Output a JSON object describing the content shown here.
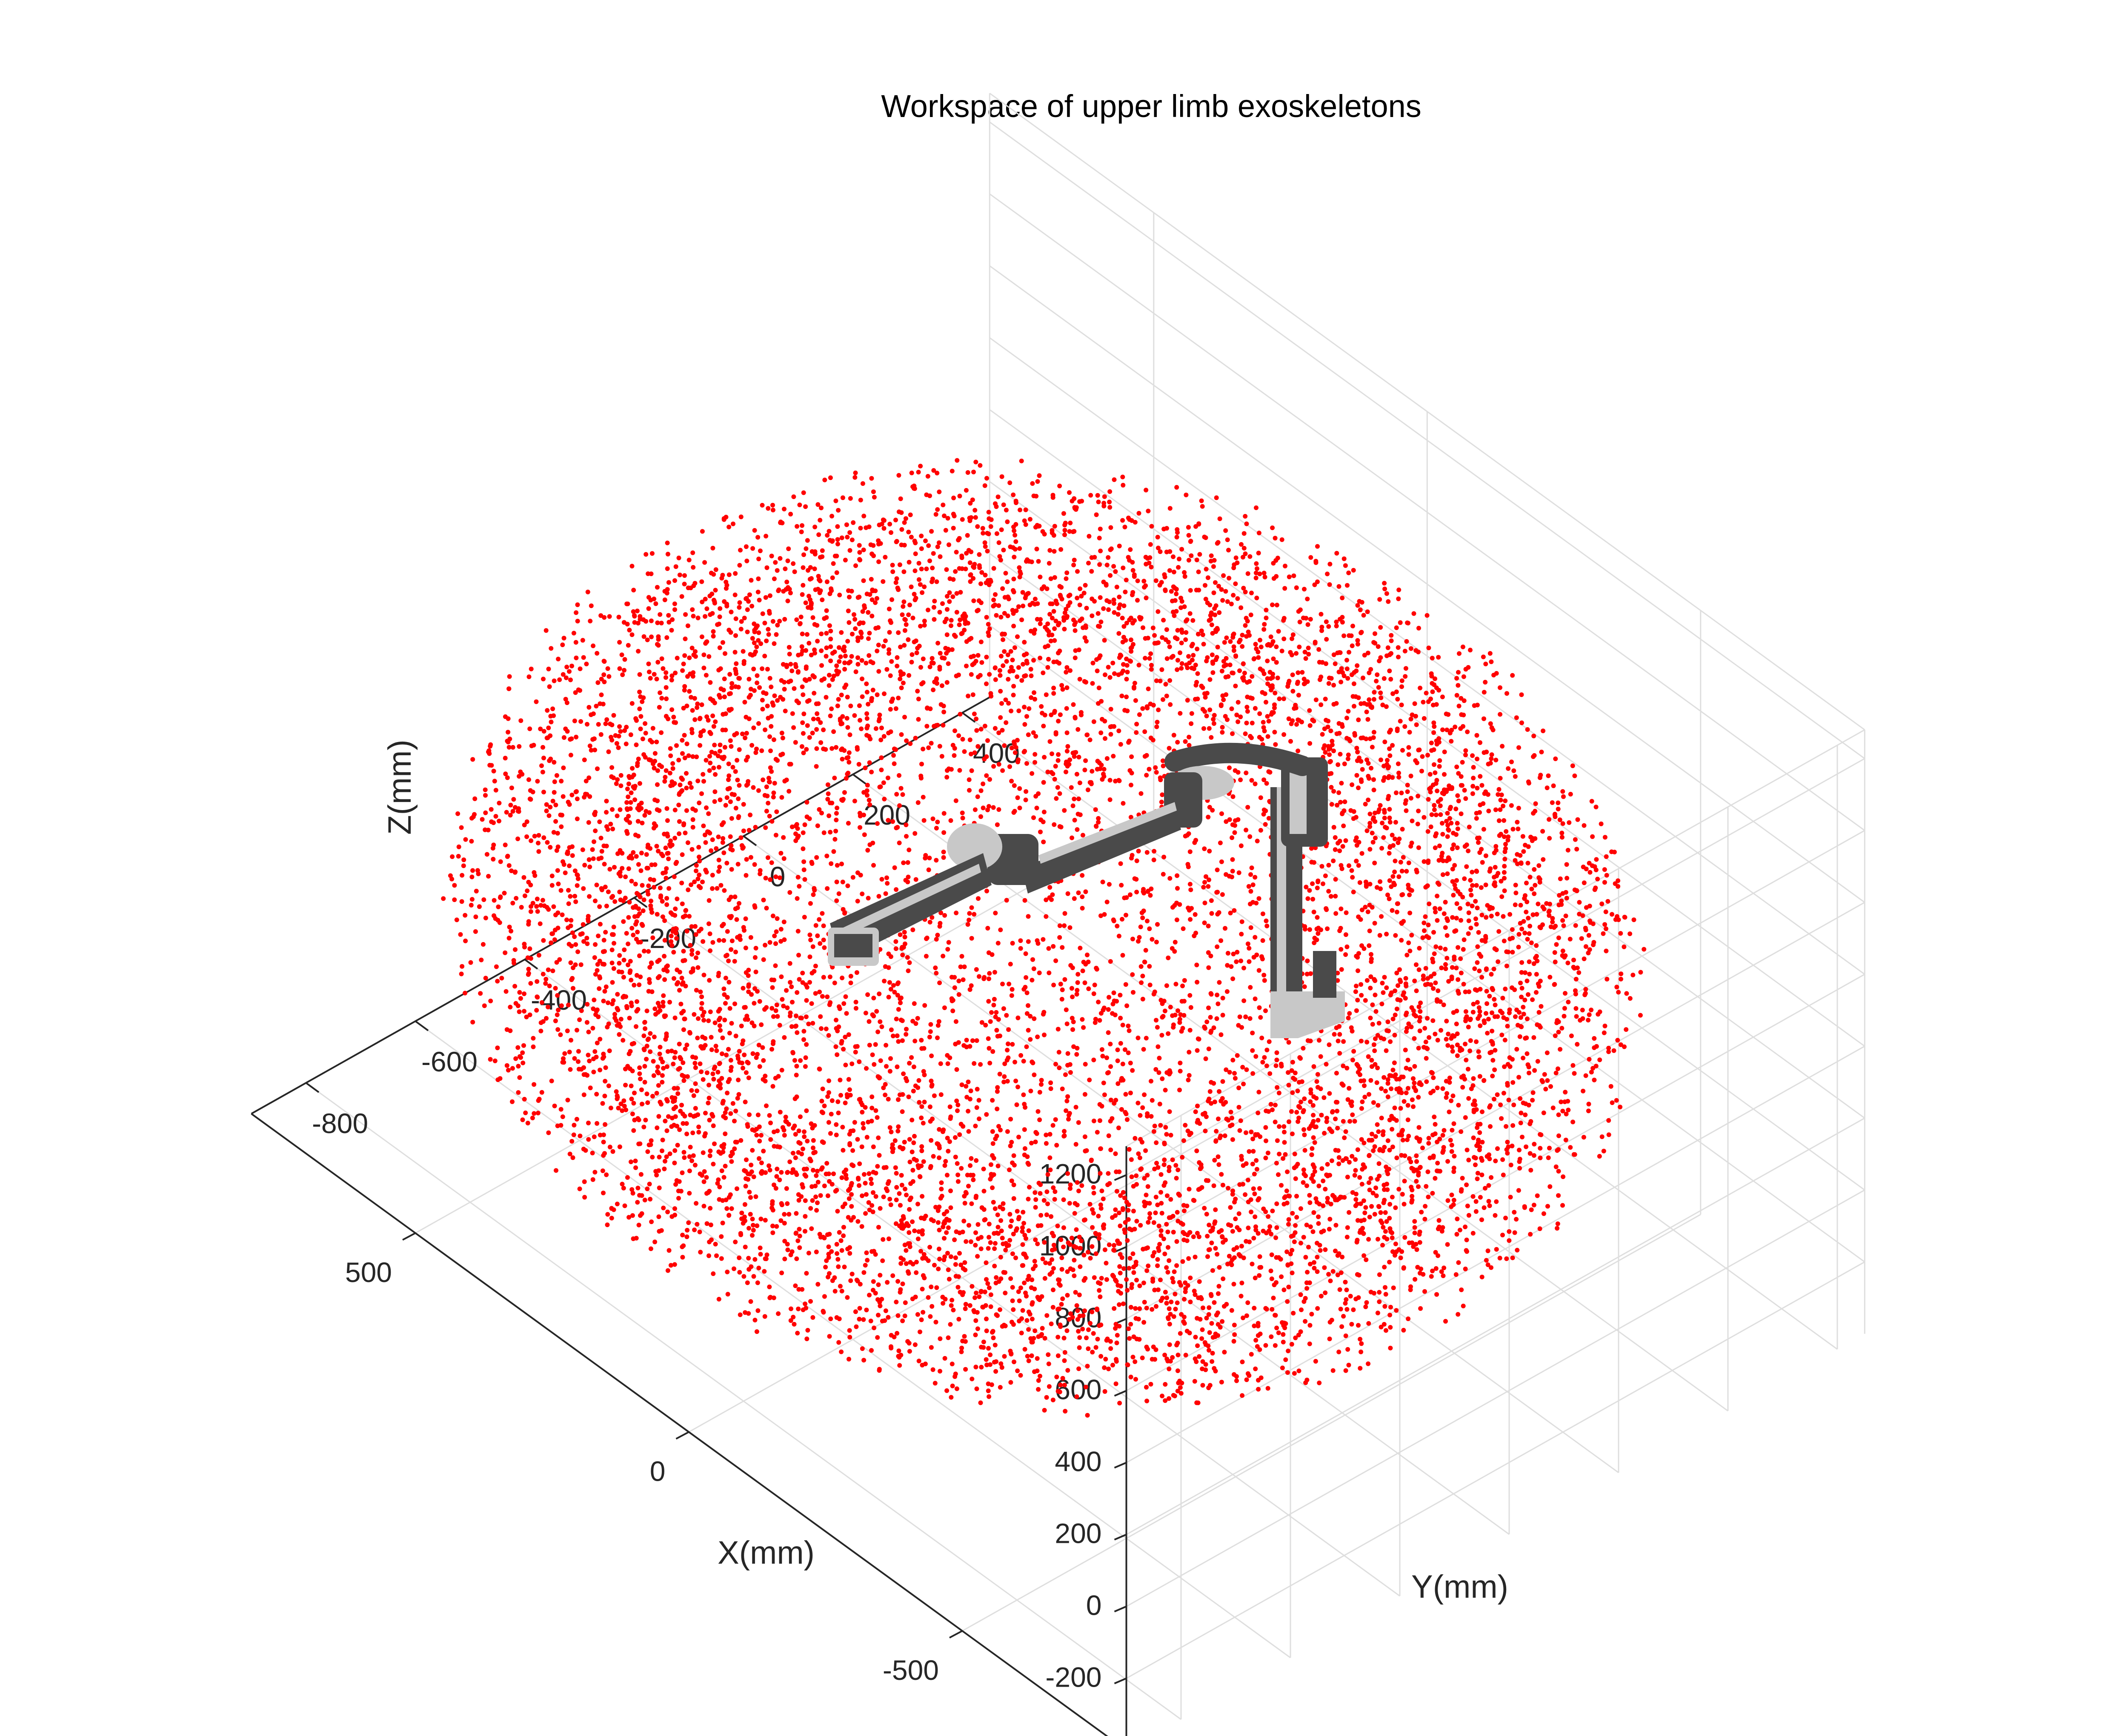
{
  "chart_data": {
    "type": "scatter",
    "projection": "3d",
    "title": "Workspace of upper limb exoskeletons",
    "xlabel": "X(mm)",
    "ylabel": "Y(mm)",
    "zlabel": "Z(mm)",
    "xlim": [
      -800,
      800
    ],
    "ylim": [
      -900,
      450
    ],
    "zlim": [
      -400,
      1280
    ],
    "xticks": [
      -500,
      0,
      500
    ],
    "yticks": [
      -800,
      -600,
      -400,
      -200,
      0,
      200,
      400
    ],
    "zticks": [
      -200,
      0,
      200,
      400,
      600,
      800,
      1000,
      1200
    ],
    "grid": true,
    "series": [
      {
        "marker_color": "#ff0000",
        "marker": "point",
        "distribution": "sphere_volume",
        "center": [
          0,
          -250,
          420
        ],
        "radius": 780,
        "approx_count": 9000
      }
    ],
    "annotations": [
      "exoskeleton-model-graphic"
    ]
  },
  "colors": {
    "points": "#ff0000",
    "model_dark": "#4a4a4a",
    "model_light": "#c8c8c8",
    "grid": "#dedede",
    "axes": "#262626"
  }
}
